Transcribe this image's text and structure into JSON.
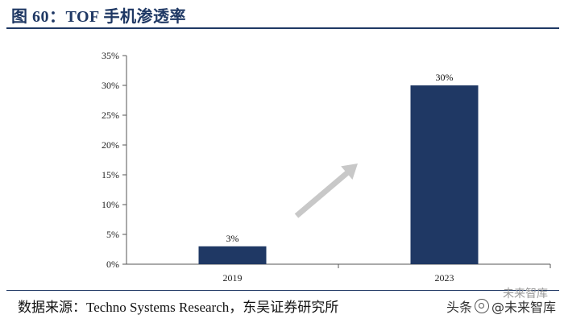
{
  "figure_title": "图 60：TOF 手机渗透率",
  "source_text": "数据来源：Techno Systems Research，东吴证券研究所",
  "watermark": {
    "prefix": "头条",
    "handle": "@未来智库",
    "top_text": "未来智库"
  },
  "colors": {
    "bar": "#1f3864",
    "title": "#1f3864",
    "arrow": "#c8c8c8"
  },
  "chart_data": {
    "type": "bar",
    "categories": [
      "2019",
      "2023"
    ],
    "values": [
      3,
      30
    ],
    "data_labels": [
      "3%",
      "30%"
    ],
    "ylim": [
      0,
      35
    ],
    "yticks": [
      0,
      5,
      10,
      15,
      20,
      25,
      30,
      35
    ],
    "ytick_labels": [
      "0%",
      "5%",
      "10%",
      "15%",
      "20%",
      "25%",
      "30%",
      "35%"
    ],
    "grid": false,
    "legend": "none",
    "annotation": "upward-trend-arrow"
  }
}
